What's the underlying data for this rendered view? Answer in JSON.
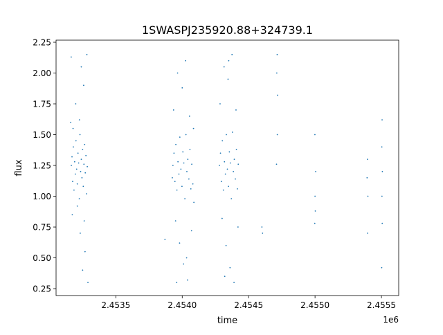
{
  "chart_data": {
    "type": "scatter",
    "title": "1SWASPJ235920.88+324739.1",
    "xlabel": "time",
    "ylabel": "flux",
    "x_offset_label": "1e6",
    "xlim": [
      2453050,
      2455630
    ],
    "ylim": [
      0.194,
      2.267
    ],
    "xticks": [
      2453500,
      2454000,
      2454500,
      2455000,
      2455500
    ],
    "xtick_labels": [
      "2.4535",
      "2.4540",
      "2.4545",
      "2.4550",
      "2.4555"
    ],
    "yticks": [
      0.25,
      0.5,
      0.75,
      1.0,
      1.25,
      1.5,
      1.75,
      2.0,
      2.25
    ],
    "ytick_labels": [
      "0.25",
      "0.50",
      "0.75",
      "1.00",
      "1.25",
      "1.50",
      "1.75",
      "2.00",
      "2.25"
    ],
    "grid": false,
    "marker_color": "#1f77b4",
    "points": [
      [
        2453165,
        1.25
      ],
      [
        2453170,
        1.32
      ],
      [
        2453175,
        1.12
      ],
      [
        2453180,
        1.4
      ],
      [
        2453185,
        1.05
      ],
      [
        2453190,
        1.28
      ],
      [
        2453195,
        1.18
      ],
      [
        2453200,
        1.45
      ],
      [
        2453205,
        1.22
      ],
      [
        2453210,
        1.1
      ],
      [
        2453215,
        1.35
      ],
      [
        2453220,
        1.27
      ],
      [
        2453225,
        0.98
      ],
      [
        2453230,
        1.5
      ],
      [
        2453235,
        1.2
      ],
      [
        2453240,
        1.3
      ],
      [
        2453245,
        1.15
      ],
      [
        2453250,
        1.38
      ],
      [
        2453255,
        1.08
      ],
      [
        2453260,
        1.26
      ],
      [
        2453265,
        1.42
      ],
      [
        2453270,
        1.19
      ],
      [
        2453275,
        1.33
      ],
      [
        2453280,
        1.02
      ],
      [
        2453285,
        1.24
      ],
      [
        2453160,
        1.6
      ],
      [
        2453172,
        0.85
      ],
      [
        2453198,
        1.75
      ],
      [
        2453232,
        0.7
      ],
      [
        2453258,
        1.9
      ],
      [
        2453268,
        0.55
      ],
      [
        2453282,
        2.15
      ],
      [
        2453290,
        0.3
      ],
      [
        2453164,
        2.13
      ],
      [
        2453240,
        2.05
      ],
      [
        2453250,
        0.4
      ],
      [
        2453178,
        1.55
      ],
      [
        2453210,
        0.92
      ],
      [
        2453226,
        1.62
      ],
      [
        2453262,
        0.8
      ],
      [
        2453930,
        1.25
      ],
      [
        2453938,
        1.35
      ],
      [
        2453945,
        1.12
      ],
      [
        2453952,
        1.42
      ],
      [
        2453960,
        1.05
      ],
      [
        2453968,
        1.28
      ],
      [
        2453975,
        1.18
      ],
      [
        2453982,
        1.48
      ],
      [
        2453990,
        1.22
      ],
      [
        2453998,
        1.08
      ],
      [
        2454005,
        1.36
      ],
      [
        2454012,
        1.27
      ],
      [
        2454020,
        0.98
      ],
      [
        2454028,
        1.5
      ],
      [
        2454035,
        1.2
      ],
      [
        2454042,
        1.3
      ],
      [
        2454050,
        1.14
      ],
      [
        2454058,
        1.38
      ],
      [
        2454065,
        1.06
      ],
      [
        2454072,
        1.26
      ],
      [
        2454080,
        1.1
      ],
      [
        2454088,
        0.95
      ],
      [
        2453935,
        1.7
      ],
      [
        2453950,
        0.8
      ],
      [
        2453965,
        2.0
      ],
      [
        2453980,
        0.62
      ],
      [
        2454000,
        1.88
      ],
      [
        2454010,
        0.45
      ],
      [
        2454025,
        2.1
      ],
      [
        2454040,
        0.32
      ],
      [
        2454055,
        1.65
      ],
      [
        2454070,
        0.72
      ],
      [
        2454085,
        1.55
      ],
      [
        2453958,
        0.3
      ],
      [
        2454033,
        0.5
      ],
      [
        2453925,
        1.15
      ],
      [
        2454280,
        1.25
      ],
      [
        2454288,
        1.35
      ],
      [
        2454295,
        1.12
      ],
      [
        2454302,
        1.45
      ],
      [
        2454310,
        1.05
      ],
      [
        2454318,
        1.28
      ],
      [
        2454325,
        1.18
      ],
      [
        2454332,
        1.5
      ],
      [
        2454340,
        1.22
      ],
      [
        2454348,
        1.08
      ],
      [
        2454355,
        1.36
      ],
      [
        2454362,
        1.27
      ],
      [
        2454370,
        0.98
      ],
      [
        2454378,
        1.52
      ],
      [
        2454385,
        1.2
      ],
      [
        2454392,
        1.3
      ],
      [
        2454400,
        1.14
      ],
      [
        2454408,
        1.38
      ],
      [
        2454415,
        1.06
      ],
      [
        2454422,
        1.26
      ],
      [
        2454285,
        1.75
      ],
      [
        2454300,
        0.82
      ],
      [
        2454315,
        2.05
      ],
      [
        2454330,
        0.6
      ],
      [
        2454345,
        1.95
      ],
      [
        2454360,
        0.42
      ],
      [
        2454375,
        2.15
      ],
      [
        2454390,
        0.3
      ],
      [
        2454405,
        1.7
      ],
      [
        2454420,
        0.75
      ],
      [
        2454350,
        2.1
      ],
      [
        2454320,
        0.35
      ],
      [
        2453870,
        0.65
      ],
      [
        2454600,
        0.75
      ],
      [
        2454605,
        0.7
      ],
      [
        2454715,
        2.15
      ],
      [
        2454712,
        2.0
      ],
      [
        2454718,
        1.82
      ],
      [
        2454710,
        1.26
      ],
      [
        2454716,
        1.5
      ],
      [
        2454999,
        1.5
      ],
      [
        2455005,
        1.2
      ],
      [
        2455000,
        1.0
      ],
      [
        2455002,
        0.88
      ],
      [
        2454998,
        0.78
      ],
      [
        2455395,
        1.3
      ],
      [
        2455392,
        1.15
      ],
      [
        2455398,
        1.0
      ],
      [
        2455396,
        0.7
      ],
      [
        2455505,
        1.62
      ],
      [
        2455503,
        1.4
      ],
      [
        2455507,
        1.2
      ],
      [
        2455504,
        1.0
      ],
      [
        2455506,
        0.78
      ],
      [
        2455502,
        0.42
      ]
    ]
  }
}
